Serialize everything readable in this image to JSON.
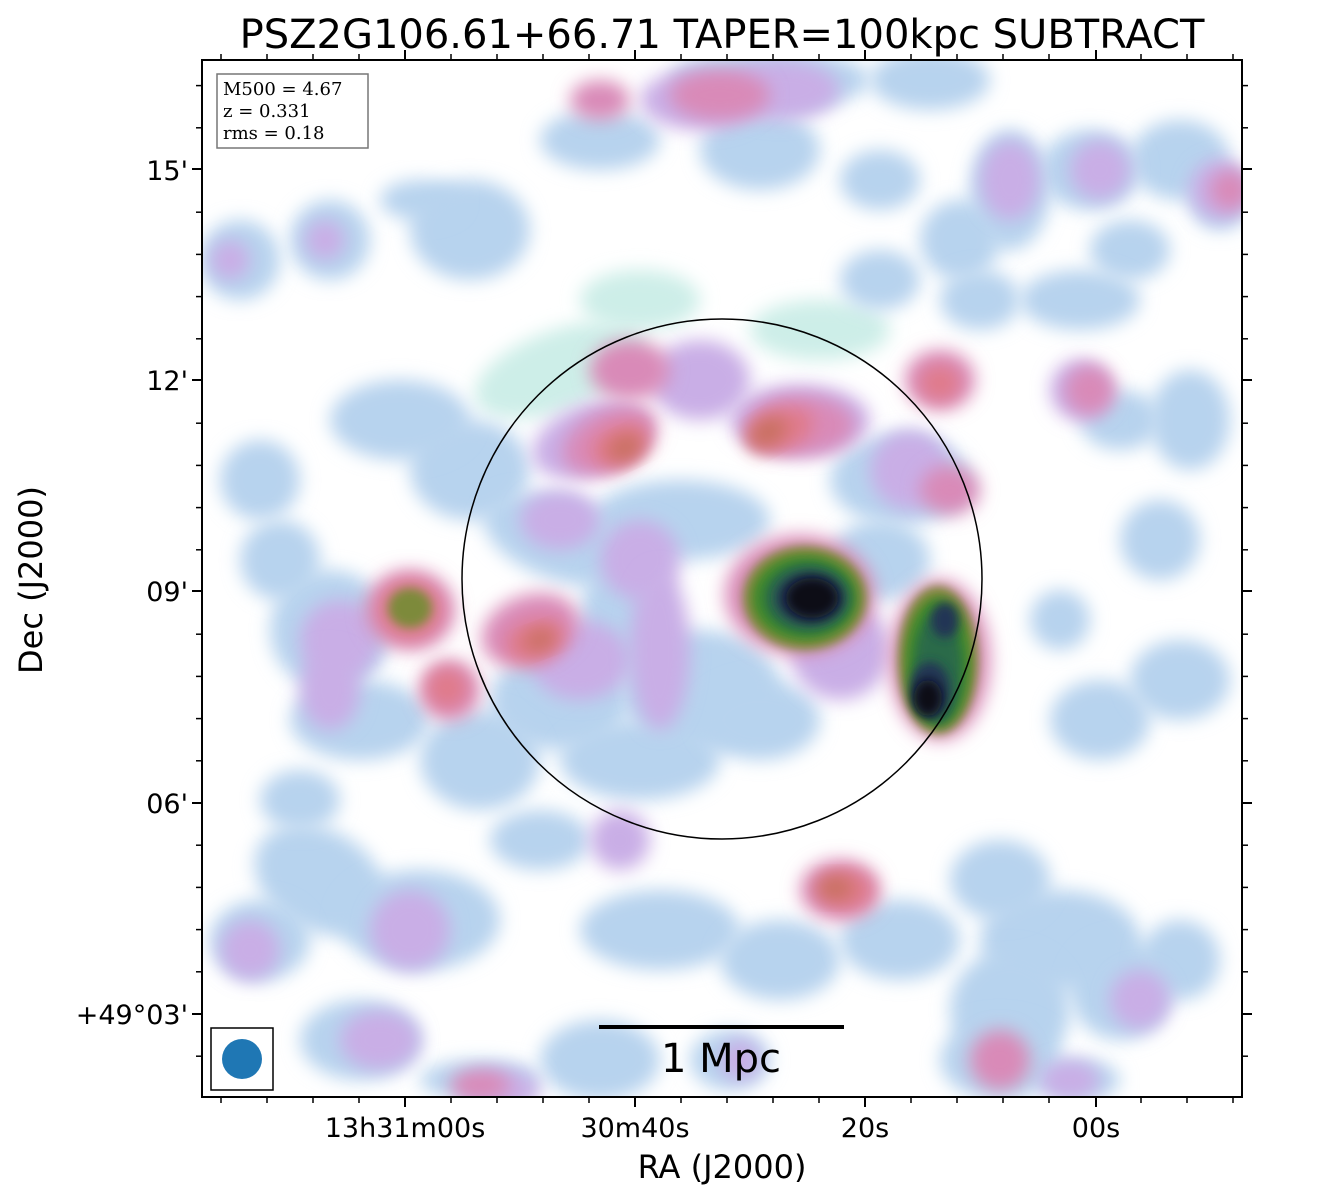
{
  "chart_data": {
    "type": "heatmap",
    "title": "PSZ2G106.61+66.71 TAPER=100kpc SUBTRACT",
    "xlabel": "RA (J2000)",
    "ylabel": "Dec (J2000)",
    "x_ticks": [
      "13h31m00s",
      "30m40s",
      "20s",
      "00s"
    ],
    "y_ticks": [
      "+49°03'",
      "06'",
      "09'",
      "12'",
      "15'"
    ],
    "info": {
      "mass": "M500 = 4.67",
      "redshift": "z = 0.331",
      "rms": "rms = 0.18"
    },
    "scale_bar_label": "1 Mpc",
    "colormap": [
      "#ffffff",
      "#cdeee8",
      "#b7d3ee",
      "#c9aee6",
      "#d98ab8",
      "#e07a8a",
      "#c7705e",
      "#7d8a3a",
      "#3d8a2a",
      "#2a6a48",
      "#223555",
      "#0a0a14"
    ],
    "beam_color": "#1f77b4",
    "grid": false
  }
}
